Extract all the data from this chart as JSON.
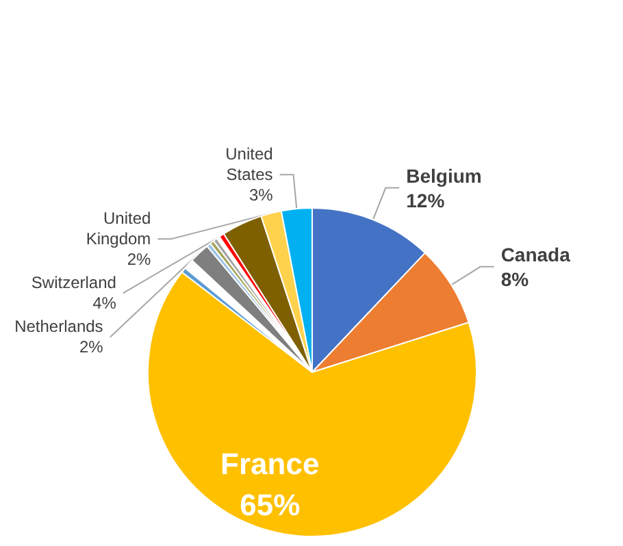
{
  "chart_data": {
    "type": "pie",
    "categories": [
      "Belgium",
      "Canada",
      "France",
      null,
      null,
      "Netherlands",
      null,
      null,
      null,
      null,
      null,
      "Switzerland",
      "United Kingdom",
      "United States"
    ],
    "values": [
      12,
      8,
      65,
      0.5,
      1,
      2,
      0.4,
      0.4,
      0.4,
      0.3,
      0.5,
      4,
      2,
      3
    ],
    "colors": [
      "#4472c4",
      "#ed7d31",
      "#ffc000",
      "#5b9bd5",
      "#ffffff",
      "#7f7f7f",
      "#9dc3e6",
      "#a5a55a",
      "#a5a5a5",
      "#ffffff",
      "#ff0000",
      "#7f6000",
      "#ffd24d",
      "#00b0f0"
    ],
    "value_labels": [
      "12%",
      "8%",
      "65%",
      null,
      null,
      "2%",
      null,
      null,
      null,
      null,
      null,
      "4%",
      "2%",
      "3%"
    ],
    "legend": false
  }
}
